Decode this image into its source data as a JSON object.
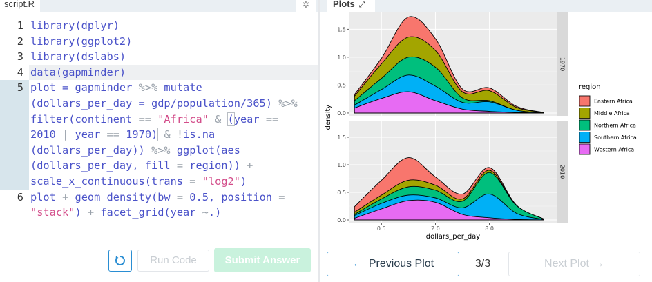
{
  "editor": {
    "tab_title": "script.R",
    "settings_icon": "gear-icon",
    "lines": [
      {
        "number": "1",
        "rows": [
          [
            [
              "fn",
              "library(dplyr)"
            ]
          ]
        ]
      },
      {
        "number": "2",
        "rows": [
          [
            [
              "fn",
              "library(ggplot2)"
            ]
          ]
        ]
      },
      {
        "number": "3",
        "rows": [
          [
            [
              "fn",
              "library(dslabs)"
            ]
          ]
        ]
      },
      {
        "number": "4",
        "rows": [
          [
            [
              "fn",
              "data(gapminder)"
            ]
          ]
        ]
      },
      {
        "number": "5",
        "active": true,
        "rows": [
          [
            [
              "fn",
              "plot = gapminder "
            ],
            [
              "op",
              "%>%"
            ],
            [
              "fn",
              " mutate"
            ]
          ],
          [
            [
              "fn",
              "(dollars_per_day = gdp/population/365) "
            ],
            [
              "op",
              "%>%"
            ]
          ],
          [
            [
              "fn",
              "filter(continent "
            ],
            [
              "op",
              "=="
            ],
            [
              "fn",
              " "
            ],
            [
              "str",
              "\"Africa\""
            ],
            [
              "fn",
              " "
            ],
            [
              "op",
              "&"
            ],
            [
              "fn",
              " "
            ],
            [
              "bracket",
              "("
            ],
            [
              "fn",
              "year "
            ],
            [
              "op",
              "=="
            ]
          ],
          [
            [
              "num",
              "2010"
            ],
            [
              "fn",
              " "
            ],
            [
              "op",
              "|"
            ],
            [
              "fn",
              " year "
            ],
            [
              "op",
              "=="
            ],
            [
              "fn",
              " "
            ],
            [
              "num",
              "1970"
            ],
            [
              "bracket",
              ")"
            ],
            [
              "caret",
              ""
            ],
            [
              "fn",
              " "
            ],
            [
              "op",
              "&"
            ],
            [
              "fn",
              " "
            ],
            [
              "op",
              "!"
            ],
            [
              "fn",
              "is.na"
            ]
          ],
          [
            [
              "fn",
              "(dollars_per_day)) "
            ],
            [
              "op",
              "%>%"
            ],
            [
              "fn",
              " ggplot(aes"
            ]
          ],
          [
            [
              "fn",
              "(dollars_per_day, fill "
            ],
            [
              "op",
              "="
            ],
            [
              "fn",
              " region)) "
            ],
            [
              "op",
              "+"
            ]
          ],
          [
            [
              "fn",
              "scale_x_continuous(trans "
            ],
            [
              "op",
              "="
            ],
            [
              "fn",
              " "
            ],
            [
              "str",
              "\"log2\""
            ],
            [
              "fn",
              ")"
            ]
          ]
        ]
      },
      {
        "number": "6",
        "rows": [
          [
            [
              "fn",
              "plot "
            ],
            [
              "op",
              "+"
            ],
            [
              "fn",
              " geom_density(bw "
            ],
            [
              "op",
              "="
            ],
            [
              "fn",
              " "
            ],
            [
              "num",
              "0.5"
            ],
            [
              "fn",
              ", position "
            ],
            [
              "op",
              "="
            ]
          ],
          [
            [
              "str",
              "\"stack\""
            ],
            [
              "fn",
              ") "
            ],
            [
              "op",
              "+"
            ],
            [
              "fn",
              " facet_grid(year "
            ],
            [
              "op",
              "~"
            ],
            [
              "fn",
              ".)"
            ]
          ]
        ]
      }
    ],
    "highlight_row": 3,
    "buttons": {
      "reset_icon": "reset-icon",
      "run_label": "Run Code",
      "submit_label": "Submit Answer"
    }
  },
  "plots": {
    "tab_title": "Plots",
    "expand_icon": "expand-icon",
    "nav": {
      "prev_label": "Previous Plot",
      "prev_icon": "arrow-left-icon",
      "counter": "3/3",
      "next_label": "Next Plot",
      "next_icon": "arrow-right-icon"
    }
  },
  "chart_data": {
    "type": "area",
    "subtype": "stacked density, facet_grid by year",
    "xlabel": "dollars_per_day",
    "ylabel": "density",
    "x_scale": "log2",
    "x_ticks": [
      {
        "value": 0.5,
        "label": "0.5"
      },
      {
        "value": 2,
        "label": "2.0"
      },
      {
        "value": 8,
        "label": "8.0"
      }
    ],
    "xlim": [
      0.22,
      45
    ],
    "y_ticks": [
      0,
      0.5,
      1.0,
      1.5
    ],
    "y_tick_labels": [
      "0.0",
      "0.5",
      "1.0",
      "1.5"
    ],
    "ylim": [
      -0.05,
      1.8
    ],
    "legend": {
      "title": "region",
      "position": "right"
    },
    "colors": {
      "Eastern Africa": "#F8766D",
      "Middle Africa": "#A3A500",
      "Northern Africa": "#00BF7D",
      "Southern Africa": "#00B0F6",
      "Western Africa": "#E76BF3"
    },
    "x": [
      0.25,
      0.5,
      1,
      2,
      4,
      8,
      16,
      32
    ],
    "facets": [
      {
        "label": "1970",
        "cumulative": [
          {
            "name": "Western Africa",
            "values": [
              0.09,
              0.26,
              0.38,
              0.22,
              0.07,
              0.03,
              0.01,
              0.0
            ]
          },
          {
            "name": "Southern Africa",
            "values": [
              0.14,
              0.42,
              0.68,
              0.48,
              0.19,
              0.2,
              0.05,
              0.0
            ]
          },
          {
            "name": "Northern Africa",
            "values": [
              0.22,
              0.62,
              1.0,
              0.82,
              0.27,
              0.22,
              0.05,
              0.0
            ]
          },
          {
            "name": "Middle Africa",
            "values": [
              0.3,
              0.88,
              1.36,
              1.12,
              0.38,
              0.4,
              0.1,
              0.01
            ]
          },
          {
            "name": "Eastern Africa",
            "values": [
              0.33,
              0.98,
              1.72,
              1.33,
              0.43,
              0.45,
              0.12,
              0.01
            ]
          }
        ]
      },
      {
        "label": "2010",
        "cumulative": [
          {
            "name": "Western Africa",
            "values": [
              0.03,
              0.2,
              0.35,
              0.32,
              0.1,
              0.04,
              0.01,
              0.0
            ]
          },
          {
            "name": "Southern Africa",
            "values": [
              0.08,
              0.3,
              0.45,
              0.4,
              0.22,
              0.47,
              0.12,
              0.01
            ]
          },
          {
            "name": "Northern Africa",
            "values": [
              0.1,
              0.38,
              0.6,
              0.54,
              0.34,
              0.86,
              0.26,
              0.02
            ]
          },
          {
            "name": "Middle Africa",
            "values": [
              0.14,
              0.45,
              0.72,
              0.63,
              0.38,
              0.9,
              0.26,
              0.02
            ]
          },
          {
            "name": "Eastern Africa",
            "values": [
              0.24,
              0.72,
              1.13,
              0.78,
              0.47,
              0.95,
              0.27,
              0.02
            ]
          }
        ]
      }
    ]
  }
}
